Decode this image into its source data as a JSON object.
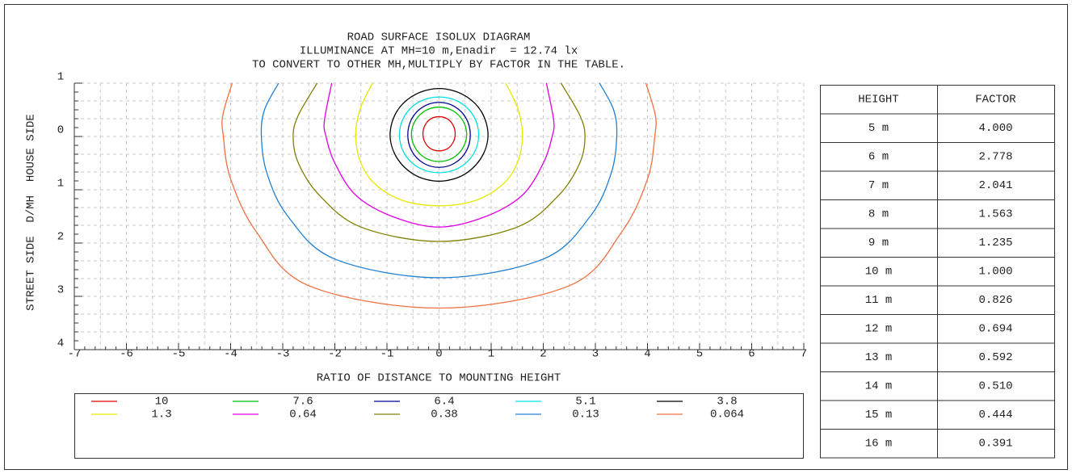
{
  "chart_data": {
    "type": "contour",
    "title": [
      "ROAD SURFACE ISOLUX DIAGRAM",
      "ILLUMINANCE AT MH=10 m,Enadir  = 12.74 lx",
      "TO CONVERT TO OTHER MH,MULTIPLY BY FACTOR IN THE TABLE."
    ],
    "x_label": "RATIO OF DISTANCE TO MOUNTING HEIGHT",
    "y_label": "STREET SIDE  D/MH  HOUSE SIDE",
    "xlim": [
      -7,
      7
    ],
    "ylim": [
      -4,
      1
    ],
    "xticks": [
      -7,
      -6,
      -5,
      -4,
      -3,
      -2,
      -1,
      0,
      1,
      2,
      3,
      4,
      5,
      6,
      7
    ],
    "yticks": [
      1,
      0,
      {
        "value": -1,
        "label": "1"
      },
      {
        "value": -2,
        "label": "2"
      },
      {
        "value": -3,
        "label": "3"
      },
      {
        "value": -4,
        "label": "4"
      }
    ],
    "grid": true,
    "series": [
      {
        "name": "10",
        "color": "#e00000",
        "closed": true,
        "x": [
          0.31,
          0.27,
          0.16,
          0,
          -0.16,
          -0.27,
          -0.31,
          -0.27,
          -0.16,
          0,
          0.16,
          0.27
        ],
        "y": [
          0.05,
          0.21,
          0.33,
          0.37,
          0.33,
          0.21,
          0.05,
          -0.11,
          -0.23,
          -0.27,
          -0.23,
          -0.11
        ]
      },
      {
        "name": "7.6",
        "color": "#00c000",
        "closed": true,
        "x": [
          0.53,
          0.46,
          0.27,
          0,
          -0.27,
          -0.46,
          -0.53,
          -0.46,
          -0.27,
          0,
          0.27,
          0.46
        ],
        "y": [
          0.04,
          0.29,
          0.48,
          0.55,
          0.48,
          0.29,
          0.04,
          -0.21,
          -0.4,
          -0.47,
          -0.4,
          -0.21
        ]
      },
      {
        "name": "6.4",
        "color": "#000090",
        "closed": true,
        "x": [
          0.6,
          0.52,
          0.3,
          0,
          -0.3,
          -0.52,
          -0.6,
          -0.52,
          -0.3,
          0,
          0.3,
          0.52
        ],
        "y": [
          0.03,
          0.34,
          0.56,
          0.64,
          0.56,
          0.34,
          0.03,
          -0.28,
          -0.5,
          -0.58,
          -0.5,
          -0.28
        ]
      },
      {
        "name": "5.1",
        "color": "#00e0e0",
        "closed": true,
        "x": [
          0.76,
          0.66,
          0.38,
          0,
          -0.38,
          -0.66,
          -0.76,
          -0.66,
          -0.38,
          0,
          0.38,
          0.66
        ],
        "y": [
          0.03,
          0.39,
          0.65,
          0.74,
          0.65,
          0.39,
          0.03,
          -0.33,
          -0.59,
          -0.68,
          -0.59,
          -0.33
        ]
      },
      {
        "name": "3.8",
        "color": "#000000",
        "closed": true,
        "x": [
          0.94,
          0.81,
          0.47,
          0,
          -0.47,
          -0.81,
          -0.94,
          -0.81,
          -0.47,
          0,
          0.47,
          0.81
        ],
        "y": [
          0.03,
          0.47,
          0.78,
          0.9,
          0.78,
          0.47,
          0.03,
          -0.4,
          -0.72,
          -0.84,
          -0.72,
          -0.4
        ]
      },
      {
        "name": "1.3",
        "color": "#e8e800",
        "closed": false,
        "x": [
          -1.28,
          -1.52,
          -1.6,
          -1.5,
          -1.22,
          -0.7,
          0,
          0.7,
          1.22,
          1.5,
          1.6,
          1.52,
          1.28
        ],
        "y": [
          1,
          0.5,
          0,
          -0.5,
          -0.9,
          -1.2,
          -1.3,
          -1.2,
          -0.9,
          -0.5,
          0,
          0.5,
          1
        ]
      },
      {
        "name": "0.64",
        "color": "#e000e0",
        "closed": false,
        "x": [
          -2.06,
          -2.2,
          -2.17,
          -2.0,
          -1.6,
          -0.9,
          0,
          0.9,
          1.6,
          2.0,
          2.17,
          2.2,
          2.06
        ],
        "y": [
          1,
          0.3,
          0,
          -0.5,
          -1.1,
          -1.5,
          -1.7,
          -1.5,
          -1.1,
          -0.5,
          0,
          0.3,
          1
        ]
      },
      {
        "name": "0.38",
        "color": "#808000",
        "closed": false,
        "x": [
          -2.34,
          -2.7,
          -2.8,
          -2.7,
          -2.3,
          -1.5,
          0,
          1.5,
          2.3,
          2.7,
          2.8,
          2.7,
          2.34
        ],
        "y": [
          1,
          0.4,
          0,
          -0.5,
          -1.1,
          -1.7,
          -1.97,
          -1.7,
          -1.1,
          -0.5,
          0,
          0.4,
          1
        ]
      },
      {
        "name": "0.13",
        "color": "#2080d0",
        "closed": false,
        "x": [
          -3.08,
          -3.35,
          -3.41,
          -3.3,
          -2.9,
          -2.0,
          0,
          2.0,
          2.9,
          3.3,
          3.41,
          3.35,
          3.08
        ],
        "y": [
          1,
          0.5,
          0,
          -0.7,
          -1.5,
          -2.3,
          -2.65,
          -2.3,
          -1.5,
          -0.7,
          0,
          0.5,
          1
        ]
      },
      {
        "name": "0.064",
        "color": "#f07040",
        "closed": false,
        "x": [
          -3.97,
          -4.15,
          -4.14,
          -4.0,
          -3.5,
          -2.5,
          0,
          2.5,
          3.5,
          4.0,
          4.14,
          4.15,
          3.97
        ],
        "y": [
          1,
          0.4,
          0,
          -0.8,
          -1.8,
          -2.8,
          -3.22,
          -2.8,
          -1.8,
          -0.8,
          0,
          0.4,
          1
        ]
      }
    ]
  },
  "table": {
    "columns": [
      "HEIGHT",
      "FACTOR"
    ],
    "rows": [
      [
        "5 m",
        "4.000"
      ],
      [
        "6 m",
        "2.778"
      ],
      [
        "7 m",
        "2.041"
      ],
      [
        "8 m",
        "1.563"
      ],
      [
        "9 m",
        "1.235"
      ],
      [
        "10 m",
        "1.000"
      ],
      [
        "11 m",
        "0.826"
      ],
      [
        "12 m",
        "0.694"
      ],
      [
        "13 m",
        "0.592"
      ],
      [
        "14 m",
        "0.510"
      ],
      [
        "15 m",
        "0.444"
      ],
      [
        "16 m",
        "0.391"
      ]
    ]
  }
}
